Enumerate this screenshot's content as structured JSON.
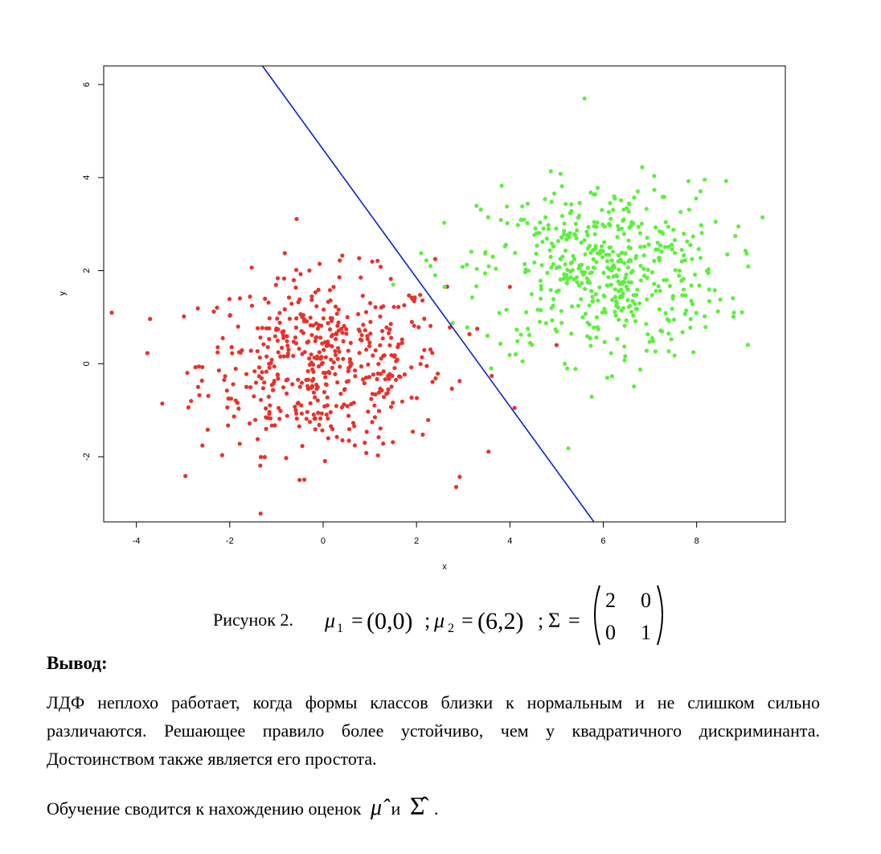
{
  "chart_data": {
    "type": "scatter",
    "xlabel": "x",
    "ylabel": "y",
    "xlim": [
      -4.7,
      9.9
    ],
    "ylim": [
      -3.4,
      6.4
    ],
    "x_ticks": [
      "-4",
      "-2",
      "0",
      "2",
      "4",
      "6",
      "8"
    ],
    "y_ticks": [
      "-2",
      "0",
      "2",
      "4",
      "6"
    ],
    "series": [
      {
        "color": "#e8322b",
        "mean": [
          0,
          0
        ],
        "sd": [
          1.414,
          1.0
        ],
        "n": 500
      },
      {
        "color": "#5cf03c",
        "mean": [
          6,
          2
        ],
        "sd": [
          1.414,
          1.0
        ],
        "n": 500
      }
    ],
    "decision_boundary": {
      "color": "#0b20d8",
      "points": [
        [
          -1.3,
          6.4
        ],
        [
          5.8,
          -3.4
        ]
      ]
    },
    "outliers": [
      {
        "series": 0,
        "x": 3.3,
        "y": 0.75
      },
      {
        "series": 0,
        "x": 2.4,
        "y": 2.25
      },
      {
        "series": 0,
        "x": 4.1,
        "y": -0.95
      },
      {
        "series": 0,
        "x": 2.85,
        "y": -2.65
      },
      {
        "series": 0,
        "x": 5.0,
        "y": 0.4
      },
      {
        "series": 0,
        "x": 4.0,
        "y": 1.65
      },
      {
        "series": 1,
        "x": 2.3,
        "y": 2.1
      },
      {
        "series": 1,
        "x": 2.4,
        "y": 1.9
      },
      {
        "series": 1,
        "x": 1.5,
        "y": 1.7
      },
      {
        "series": 1,
        "x": 3.6,
        "y": -0.1
      },
      {
        "series": 1,
        "x": 2.6,
        "y": 1.65
      },
      {
        "series": 1,
        "x": 5.6,
        "y": 5.7
      }
    ]
  },
  "caption": {
    "label": "Рисунок 2.",
    "mu": "μ",
    "sub1": "1",
    "sub2": "2",
    "eq": "=",
    "mu1_value": "(0,0)",
    "mu2_value": "(6,2)",
    "semicolon": ";",
    "sigma": "Σ",
    "matrix": [
      [
        "2",
        "0"
      ],
      [
        "0",
        "1"
      ]
    ]
  },
  "conclusion": {
    "heading": "Вывод:",
    "paragraph": "ЛДФ неплохо работает, когда формы классов близки к нормальным и не слишком сильно различаются. Решающее правило более устойчиво, чем у квадратичного дискриминанта. Достоинством также является его простота.",
    "last_line_prefix": "Обучение сводится к нахождению оценок",
    "mu_hat": "μ̂",
    "and": "и",
    "sigma_hat": "Σ̂",
    "period": "."
  }
}
